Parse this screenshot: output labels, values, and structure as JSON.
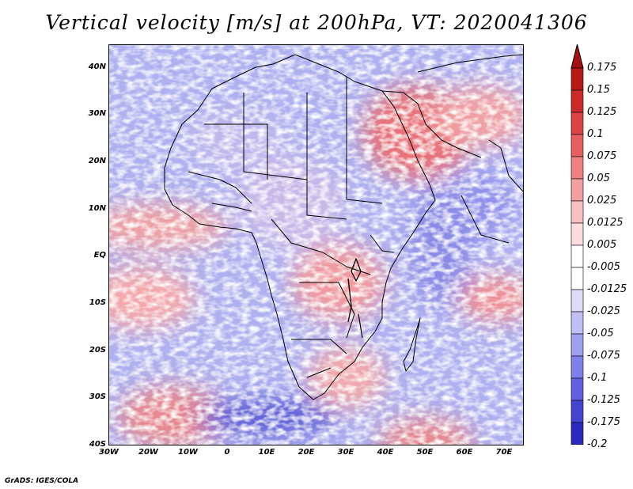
{
  "title": "Vertical velocity [m/s] at 200hPa, VT: 2020041306",
  "credit": "GrADS: IGES/COLA",
  "map": {
    "lon_range": [
      -30,
      75
    ],
    "lat_range": [
      -40,
      45
    ],
    "lon_ticks": [
      {
        "value": -30,
        "label": "30W"
      },
      {
        "value": -20,
        "label": "20W"
      },
      {
        "value": -10,
        "label": "10W"
      },
      {
        "value": 0,
        "label": "0"
      },
      {
        "value": 10,
        "label": "10E"
      },
      {
        "value": 20,
        "label": "20E"
      },
      {
        "value": 30,
        "label": "30E"
      },
      {
        "value": 40,
        "label": "40E"
      },
      {
        "value": 50,
        "label": "50E"
      },
      {
        "value": 60,
        "label": "60E"
      },
      {
        "value": 70,
        "label": "70E"
      }
    ],
    "lat_ticks": [
      {
        "value": 40,
        "label": "40N"
      },
      {
        "value": 30,
        "label": "30N"
      },
      {
        "value": 20,
        "label": "20N"
      },
      {
        "value": 10,
        "label": "10N"
      },
      {
        "value": 0,
        "label": "EQ"
      },
      {
        "value": -10,
        "label": "10S"
      },
      {
        "value": -20,
        "label": "20S"
      },
      {
        "value": -30,
        "label": "30S"
      },
      {
        "value": -40,
        "label": "40S"
      }
    ]
  },
  "colorbar": {
    "levels": [
      {
        "label": "0.175",
        "color": "#b81818"
      },
      {
        "label": "0.15",
        "color": "#cc2a2a"
      },
      {
        "label": "0.125",
        "color": "#dc4444"
      },
      {
        "label": "0.1",
        "color": "#e66060"
      },
      {
        "label": "0.075",
        "color": "#ee8080"
      },
      {
        "label": "0.05",
        "color": "#f4a0a0"
      },
      {
        "label": "0.025",
        "color": "#f8c0c0"
      },
      {
        "label": "0.0125",
        "color": "#fcdcdc"
      },
      {
        "label": "0.005",
        "color": "#ffffff"
      },
      {
        "label": "-0.005",
        "color": "#ffffff"
      },
      {
        "label": "-0.0125",
        "color": "#dcdcfa"
      },
      {
        "label": "-0.025",
        "color": "#c0c0f6"
      },
      {
        "label": "-0.05",
        "color": "#a0a0f0"
      },
      {
        "label": "-0.075",
        "color": "#8080ea"
      },
      {
        "label": "-0.1",
        "color": "#6262e0"
      },
      {
        "label": "-0.125",
        "color": "#4444d2"
      },
      {
        "label": "-0.175",
        "color": "#2a2ac0"
      },
      {
        "label": "-0.2",
        "color": "#1414a8"
      }
    ],
    "top_cap_color": "#a81010",
    "bottom_cap_color": "#101098"
  }
}
